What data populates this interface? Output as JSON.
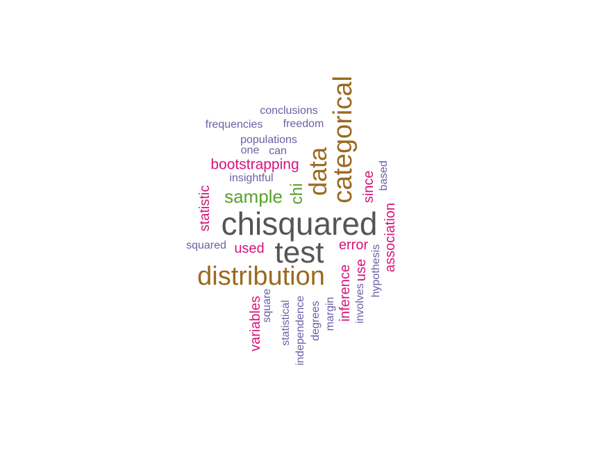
{
  "colors": {
    "gray": "#555555",
    "brown": "#9a6a1f",
    "magenta": "#d6147a",
    "purple": "#6b5fa6",
    "green": "#5aa02c"
  },
  "words": [
    {
      "id": "chisquared",
      "text": "chisquared",
      "color": "gray",
      "orientation": "horizontal"
    },
    {
      "id": "test",
      "text": "test",
      "color": "gray",
      "orientation": "horizontal"
    },
    {
      "id": "distribution",
      "text": "distribution",
      "color": "brown",
      "orientation": "horizontal"
    },
    {
      "id": "categorical",
      "text": "categorical",
      "color": "brown",
      "orientation": "vertical"
    },
    {
      "id": "data",
      "text": "data",
      "color": "brown",
      "orientation": "vertical"
    },
    {
      "id": "sample",
      "text": "sample",
      "color": "green",
      "orientation": "horizontal"
    },
    {
      "id": "chi",
      "text": "chi",
      "color": "green",
      "orientation": "vertical"
    },
    {
      "id": "bootstrapping",
      "text": "bootstrapping",
      "color": "magenta",
      "orientation": "horizontal"
    },
    {
      "id": "statistic",
      "text": "statistic",
      "color": "magenta",
      "orientation": "vertical"
    },
    {
      "id": "used",
      "text": "used",
      "color": "magenta",
      "orientation": "horizontal"
    },
    {
      "id": "error",
      "text": "error",
      "color": "magenta",
      "orientation": "horizontal"
    },
    {
      "id": "since",
      "text": "since",
      "color": "magenta",
      "orientation": "vertical"
    },
    {
      "id": "association",
      "text": "association",
      "color": "magenta",
      "orientation": "vertical"
    },
    {
      "id": "inference",
      "text": "inference",
      "color": "magenta",
      "orientation": "vertical"
    },
    {
      "id": "use",
      "text": "use",
      "color": "magenta",
      "orientation": "vertical"
    },
    {
      "id": "variables",
      "text": "variables",
      "color": "magenta",
      "orientation": "vertical"
    },
    {
      "id": "conclusions",
      "text": "conclusions",
      "color": "purple",
      "orientation": "horizontal"
    },
    {
      "id": "frequencies",
      "text": "frequencies",
      "color": "purple",
      "orientation": "horizontal"
    },
    {
      "id": "freedom",
      "text": "freedom",
      "color": "purple",
      "orientation": "horizontal"
    },
    {
      "id": "populations",
      "text": "populations",
      "color": "purple",
      "orientation": "horizontal"
    },
    {
      "id": "one",
      "text": "one",
      "color": "purple",
      "orientation": "horizontal"
    },
    {
      "id": "can",
      "text": "can",
      "color": "purple",
      "orientation": "horizontal"
    },
    {
      "id": "insightful",
      "text": "insightful",
      "color": "purple",
      "orientation": "horizontal"
    },
    {
      "id": "squared",
      "text": "squared",
      "color": "purple",
      "orientation": "horizontal"
    },
    {
      "id": "based",
      "text": "based",
      "color": "purple",
      "orientation": "vertical"
    },
    {
      "id": "hypothesis",
      "text": "hypothesis",
      "color": "purple",
      "orientation": "vertical"
    },
    {
      "id": "involves",
      "text": "involves",
      "color": "purple",
      "orientation": "vertical"
    },
    {
      "id": "margin",
      "text": "margin",
      "color": "purple",
      "orientation": "vertical"
    },
    {
      "id": "degrees",
      "text": "degrees",
      "color": "purple",
      "orientation": "vertical"
    },
    {
      "id": "independence",
      "text": "independence",
      "color": "purple",
      "orientation": "vertical"
    },
    {
      "id": "statistical",
      "text": "statistical",
      "color": "purple",
      "orientation": "vertical"
    },
    {
      "id": "square",
      "text": "square",
      "color": "purple",
      "orientation": "vertical"
    }
  ]
}
